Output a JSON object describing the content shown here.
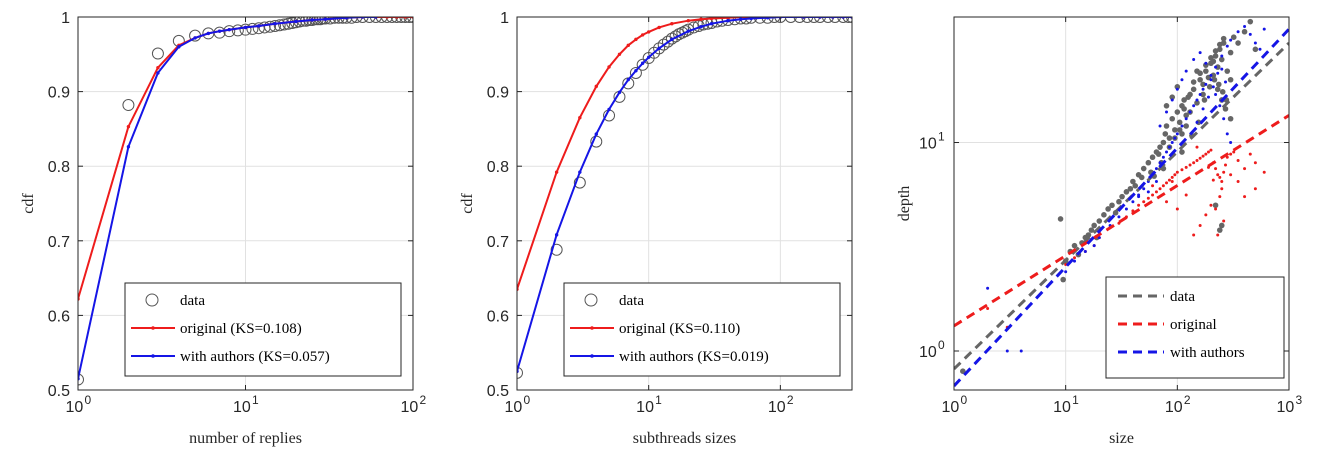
{
  "colors": {
    "data_marker": "#555555",
    "data_scatter": "#666666",
    "original": "#ee1c1c",
    "with_authors": "#1515e6",
    "grid": "#e1e1e1",
    "axis": "#262626"
  },
  "chart_data": [
    {
      "type": "line",
      "xscale": "log",
      "xlim": [
        1,
        100
      ],
      "ylim": [
        0.5,
        1.0
      ],
      "xlabel": "number of replies",
      "ylabel": "cdf",
      "xticks": [
        {
          "base": "10",
          "exp": "0"
        },
        {
          "base": "10",
          "exp": "1"
        },
        {
          "base": "10",
          "exp": "2"
        }
      ],
      "yticks": [
        "0.5",
        "0.6",
        "0.7",
        "0.8",
        "0.9",
        "1"
      ],
      "grid": true,
      "legend_position": "bottom-right",
      "series": [
        {
          "name": "data",
          "style": "open-circle-markers",
          "x": [
            1,
            2,
            3,
            4,
            5,
            6,
            7,
            8,
            9,
            10,
            11,
            12,
            13,
            14,
            15,
            16,
            17,
            18,
            19,
            20,
            21,
            22,
            23,
            24,
            25,
            26,
            27,
            28,
            29,
            30,
            32,
            34,
            36,
            38,
            40,
            43,
            46,
            50,
            55,
            60,
            65,
            70,
            75,
            80,
            85,
            90,
            95,
            100
          ],
          "y": [
            0.514,
            0.882,
            0.951,
            0.968,
            0.975,
            0.978,
            0.979,
            0.981,
            0.982,
            0.983,
            0.984,
            0.985,
            0.986,
            0.987,
            0.988,
            0.989,
            0.99,
            0.991,
            0.992,
            0.993,
            0.994,
            0.995,
            0.995,
            0.996,
            0.996,
            0.997,
            0.997,
            0.997,
            0.998,
            0.998,
            0.998,
            0.999,
            0.999,
            0.999,
            0.999,
            0.999,
            1,
            1,
            1,
            1,
            1,
            1,
            1,
            1,
            1,
            1,
            1,
            1
          ]
        },
        {
          "name": "original (KS=0.108)",
          "style": "line-dots",
          "x": [
            1,
            2,
            3,
            4,
            5,
            6,
            7,
            8,
            10,
            12,
            15,
            20,
            25,
            30,
            40,
            50,
            60,
            70,
            80,
            90,
            100
          ],
          "y": [
            0.622,
            0.853,
            0.932,
            0.962,
            0.972,
            0.978,
            0.981,
            0.983,
            0.986,
            0.988,
            0.991,
            0.994,
            0.996,
            0.997,
            0.999,
            1,
            1,
            1,
            1,
            1,
            1
          ]
        },
        {
          "name": "with authors (KS=0.057)",
          "style": "line-dots",
          "x": [
            1,
            2,
            3,
            4,
            5,
            6,
            7,
            8,
            10,
            12,
            15,
            20,
            25,
            30,
            40,
            50,
            60
          ],
          "y": [
            0.515,
            0.826,
            0.925,
            0.96,
            0.972,
            0.978,
            0.981,
            0.983,
            0.986,
            0.988,
            0.991,
            0.994,
            0.996,
            0.997,
            0.999,
            1,
            1
          ]
        }
      ]
    },
    {
      "type": "line",
      "xscale": "log",
      "xlim": [
        1,
        350
      ],
      "ylim": [
        0.5,
        1.0
      ],
      "xlabel": "subthreads sizes",
      "ylabel": "cdf",
      "xticks": [
        {
          "base": "10",
          "exp": "0"
        },
        {
          "base": "10",
          "exp": "1"
        },
        {
          "base": "10",
          "exp": "2"
        }
      ],
      "yticks": [
        "0.5",
        "0.6",
        "0.7",
        "0.8",
        "0.9",
        "1"
      ],
      "grid": true,
      "legend_position": "bottom-right",
      "series": [
        {
          "name": "data",
          "style": "open-circle-markers",
          "x": [
            1,
            2,
            3,
            4,
            5,
            6,
            7,
            8,
            9,
            10,
            11,
            12,
            13,
            14,
            15,
            16,
            17,
            18,
            19,
            20,
            22,
            24,
            26,
            28,
            30,
            33,
            36,
            40,
            45,
            50,
            55,
            60,
            70,
            80,
            90,
            100,
            120,
            140,
            160,
            180,
            200,
            230,
            260,
            300,
            330,
            350
          ],
          "y": [
            0.523,
            0.688,
            0.778,
            0.833,
            0.868,
            0.893,
            0.911,
            0.925,
            0.936,
            0.945,
            0.952,
            0.958,
            0.963,
            0.967,
            0.971,
            0.974,
            0.977,
            0.979,
            0.981,
            0.983,
            0.986,
            0.988,
            0.99,
            0.991,
            0.992,
            0.994,
            0.995,
            0.996,
            0.997,
            0.998,
            0.998,
            0.999,
            0.999,
            0.999,
            1,
            1,
            1,
            1,
            1,
            1,
            1,
            1,
            1,
            1,
            1,
            1
          ]
        },
        {
          "name": "original (KS=0.110)",
          "style": "line-dots",
          "x": [
            1,
            2,
            3,
            4,
            5,
            6,
            7,
            8,
            9,
            10,
            12,
            15,
            20,
            25,
            30,
            40,
            50,
            60,
            80,
            100,
            150,
            200,
            250,
            300,
            350
          ],
          "y": [
            0.635,
            0.792,
            0.865,
            0.907,
            0.933,
            0.95,
            0.962,
            0.97,
            0.976,
            0.98,
            0.986,
            0.991,
            0.995,
            0.997,
            0.998,
            0.999,
            1,
            1,
            1,
            1,
            1,
            1,
            1,
            1,
            1
          ]
        },
        {
          "name": "with authors (KS=0.019)",
          "style": "line-dots",
          "x": [
            1,
            2,
            3,
            4,
            5,
            6,
            7,
            8,
            9,
            10,
            12,
            15,
            20,
            25,
            30,
            40,
            50,
            60,
            80,
            100,
            150,
            200,
            250,
            300,
            350
          ],
          "y": [
            0.525,
            0.708,
            0.792,
            0.843,
            0.876,
            0.899,
            0.916,
            0.928,
            0.938,
            0.946,
            0.958,
            0.97,
            0.981,
            0.987,
            0.991,
            0.995,
            0.997,
            0.998,
            0.999,
            1,
            1,
            1,
            1,
            1,
            1
          ]
        }
      ]
    },
    {
      "type": "scatter",
      "xscale": "log",
      "yscale": "log",
      "xlim": [
        1,
        1000
      ],
      "ylim": [
        0.65,
        40
      ],
      "xlabel": "size",
      "ylabel": "depth",
      "xticks": [
        {
          "base": "10",
          "exp": "0"
        },
        {
          "base": "10",
          "exp": "1"
        },
        {
          "base": "10",
          "exp": "2"
        },
        {
          "base": "10",
          "exp": "3"
        }
      ],
      "yticks": [
        {
          "base": "10",
          "exp": "0",
          "value": 1
        },
        {
          "base": "10",
          "exp": "1",
          "value": 10
        }
      ],
      "grid": true,
      "legend_position": "bottom-right",
      "fit_lines": [
        {
          "name": "data",
          "points": [
            [
              1,
              0.82
            ],
            [
              1000,
              30
            ]
          ]
        },
        {
          "name": "original",
          "points": [
            [
              1,
              1.32
            ],
            [
              1000,
              13.5
            ]
          ]
        },
        {
          "name": "with authors",
          "points": [
            [
              1,
              0.68
            ],
            [
              1000,
              35
            ]
          ]
        }
      ],
      "series": [
        {
          "name": "data",
          "style": "dots-large",
          "x": [
            1.2,
            9,
            9.5,
            10,
            11,
            12,
            13,
            14,
            15,
            16,
            17,
            18,
            19,
            20,
            22,
            24,
            26,
            28,
            30,
            32,
            35,
            38,
            40,
            42,
            45,
            48,
            50,
            55,
            58,
            60,
            65,
            70,
            72,
            75,
            78,
            80,
            85,
            90,
            95,
            100,
            105,
            110,
            115,
            120,
            130,
            140,
            150,
            160,
            170,
            180,
            200,
            210,
            220,
            230,
            240,
            250,
            260,
            280,
            300,
            320,
            350,
            400,
            450,
            500,
            80,
            90,
            100,
            110,
            120,
            130,
            150,
            170,
            190,
            210,
            230,
            250,
            270,
            300,
            85,
            95,
            105,
            115,
            125,
            140,
            160,
            180,
            200,
            220,
            240,
            260,
            75,
            68,
            62,
            110,
            135,
            155,
            175,
            195,
            215,
            235,
            255,
            275,
            300,
            250,
            220,
            240
          ],
          "y": [
            0.8,
            4.3,
            2.2,
            2.7,
            3.0,
            3.2,
            2.9,
            3.3,
            3.5,
            3.6,
            3.8,
            4.0,
            3.5,
            4.2,
            4.5,
            4.8,
            5.0,
            4.6,
            5.2,
            5.5,
            5.8,
            6.0,
            6.5,
            6.2,
            7.0,
            6.8,
            7.5,
            8.0,
            7.2,
            8.5,
            9.0,
            9.5,
            8.0,
            10.0,
            11.0,
            12.0,
            10.5,
            13.0,
            11.5,
            14.0,
            12.5,
            15.0,
            16.0,
            13.5,
            17.0,
            18.0,
            15.5,
            20.0,
            19.0,
            22.0,
            24.0,
            21.0,
            26.0,
            23.0,
            28.0,
            25.0,
            30.0,
            22.0,
            27.0,
            32.0,
            30.0,
            34.0,
            38.0,
            28.0,
            15.0,
            16.5,
            18.5,
            11.0,
            12.0,
            14.0,
            22.0,
            17.0,
            20.5,
            24.5,
            18.0,
            16.0,
            14.5,
            13.0,
            9.5,
            10.5,
            11.5,
            14.5,
            16.5,
            19.5,
            21.5,
            23.5,
            25.5,
            27.5,
            29.5,
            31.5,
            7.5,
            8.8,
            6.9,
            9.0,
            10.8,
            12.5,
            16.0,
            18.5,
            20.0,
            19.0,
            17.5,
            16.0,
            20.0,
            4.0,
            5.0,
            3.8
          ]
        },
        {
          "name": "original",
          "style": "dots-small",
          "x": [
            2,
            3,
            10,
            12,
            15,
            18,
            20,
            25,
            30,
            35,
            40,
            45,
            50,
            55,
            60,
            65,
            70,
            75,
            80,
            85,
            90,
            95,
            100,
            110,
            120,
            130,
            140,
            150,
            160,
            170,
            180,
            190,
            200,
            210,
            220,
            230,
            240,
            250,
            260,
            270,
            280,
            300,
            320,
            350,
            400,
            450,
            500,
            200,
            180,
            160,
            140,
            120,
            100,
            90,
            80,
            70,
            60,
            150,
            250,
            300,
            350,
            400,
            500,
            600,
            220,
            240,
            260,
            230,
            210,
            190
          ],
          "y": [
            1.6,
            1.3,
            2.6,
            2.8,
            3.0,
            3.2,
            3.5,
            3.9,
            4.1,
            4.4,
            4.7,
            5.0,
            5.2,
            5.4,
            5.6,
            5.8,
            6.0,
            6.2,
            6.4,
            6.6,
            6.8,
            7.0,
            7.2,
            7.4,
            7.6,
            7.8,
            8.0,
            8.2,
            8.4,
            8.6,
            8.8,
            9.0,
            9.2,
            8.0,
            7.5,
            7.0,
            6.8,
            6.5,
            7.2,
            7.8,
            8.5,
            8.8,
            9.0,
            8.2,
            7.5,
            8.8,
            8.0,
            5.0,
            4.5,
            4.0,
            3.6,
            5.6,
            4.8,
            6.5,
            5.2,
            7.5,
            6.2,
            9.5,
            6.0,
            7.0,
            6.5,
            5.5,
            6.0,
            7.2,
            4.8,
            5.5,
            4.2,
            3.6,
            6.6,
            7.6
          ]
        },
        {
          "name": "with authors",
          "style": "dots-small",
          "x": [
            2,
            3,
            4,
            10,
            12,
            15,
            18,
            20,
            25,
            30,
            35,
            40,
            45,
            50,
            55,
            60,
            65,
            70,
            75,
            80,
            85,
            90,
            95,
            100,
            110,
            120,
            130,
            140,
            150,
            160,
            170,
            180,
            200,
            220,
            250,
            280,
            300,
            350,
            400,
            450,
            500,
            550,
            600,
            70,
            80,
            90,
            100,
            110,
            120,
            140,
            160,
            180,
            200,
            220,
            240,
            260,
            280,
            300,
            150,
            170,
            190,
            210,
            230,
            250,
            270,
            65,
            55,
            45
          ],
          "y": [
            2.0,
            1.0,
            1.0,
            2.4,
            2.7,
            3.0,
            3.2,
            3.5,
            4.0,
            4.4,
            4.8,
            5.2,
            5.6,
            6.0,
            6.5,
            7.0,
            7.5,
            8.0,
            8.5,
            9.0,
            9.5,
            10.0,
            10.5,
            11.0,
            12.0,
            13.0,
            14.0,
            15.0,
            16.0,
            17.0,
            18.0,
            19.0,
            21.0,
            23.0,
            26.0,
            29.0,
            31.0,
            34.0,
            36.0,
            33.0,
            30.0,
            28.0,
            35.0,
            12.0,
            14.0,
            16.0,
            18.0,
            20.0,
            22.0,
            25.0,
            27.0,
            24.0,
            20.0,
            17.0,
            15.0,
            13.0,
            11.0,
            10.0,
            12.5,
            14.5,
            16.5,
            18.5,
            21.5,
            22.5,
            19.5,
            6.5,
            5.8,
            5.5
          ]
        }
      ]
    }
  ]
}
